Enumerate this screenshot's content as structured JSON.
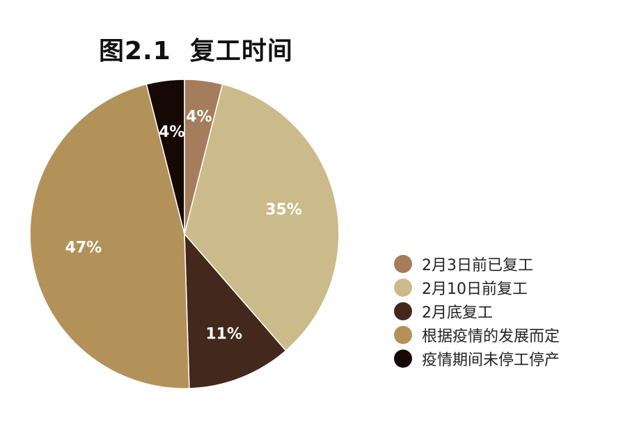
{
  "chart_data": {
    "type": "pie",
    "title": "图2.1  复工时间",
    "slices": [
      {
        "label": "2月3日前已复工",
        "value": 4,
        "display": "4%",
        "color": "#a57d5c"
      },
      {
        "label": "2月10日前复工",
        "value": 35,
        "display": "35%",
        "color": "#cbbb8b"
      },
      {
        "label": "2月底复工",
        "value": 11,
        "display": "11%",
        "color": "#42291b"
      },
      {
        "label": "根据疫情的发展而定",
        "value": 47,
        "display": "47%",
        "color": "#b3925a"
      },
      {
        "label": "疫情期间未停工停产",
        "value": 4,
        "display": "4%",
        "color": "#160905"
      }
    ],
    "legend_position": "right-bottom"
  }
}
